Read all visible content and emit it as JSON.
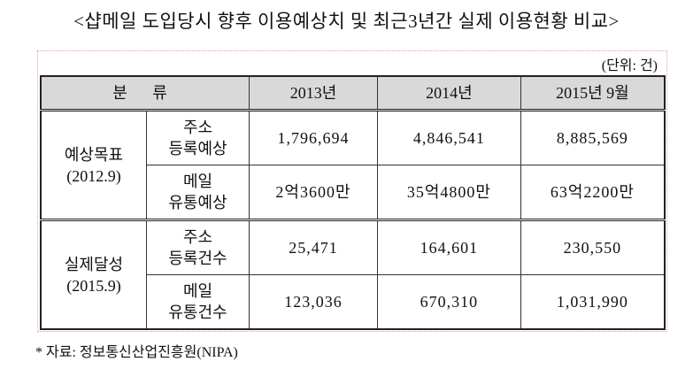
{
  "title": "<샵메일 도입당시 향후 이용예상치 및 최근3년간 실제 이용현황 비교>",
  "unit": "(단위: 건)",
  "table": {
    "header": [
      "분 류",
      "2013년",
      "2014년",
      "2015년 9월"
    ],
    "groups": [
      {
        "label": [
          "예상목표",
          "(2012.9)"
        ],
        "rows": [
          {
            "label": [
              "주소",
              "등록예상"
            ],
            "cells": [
              "1,796,694",
              "4,846,541",
              "8,885,569"
            ]
          },
          {
            "label": [
              "메일",
              "유통예상"
            ],
            "cells": [
              "2억3600만",
              "35억4800만",
              "63억2200만"
            ]
          }
        ]
      },
      {
        "label": [
          "실제달성",
          "(2015.9)"
        ],
        "rows": [
          {
            "label": [
              "주소",
              "등록건수"
            ],
            "cells": [
              "25,471",
              "164,601",
              "230,550"
            ]
          },
          {
            "label": [
              "메일",
              "유통건수"
            ],
            "cells": [
              "123,036",
              "670,310",
              "1,031,990"
            ]
          }
        ]
      }
    ]
  },
  "note": "* 자료: 정보통신산업진흥원(NIPA)"
}
